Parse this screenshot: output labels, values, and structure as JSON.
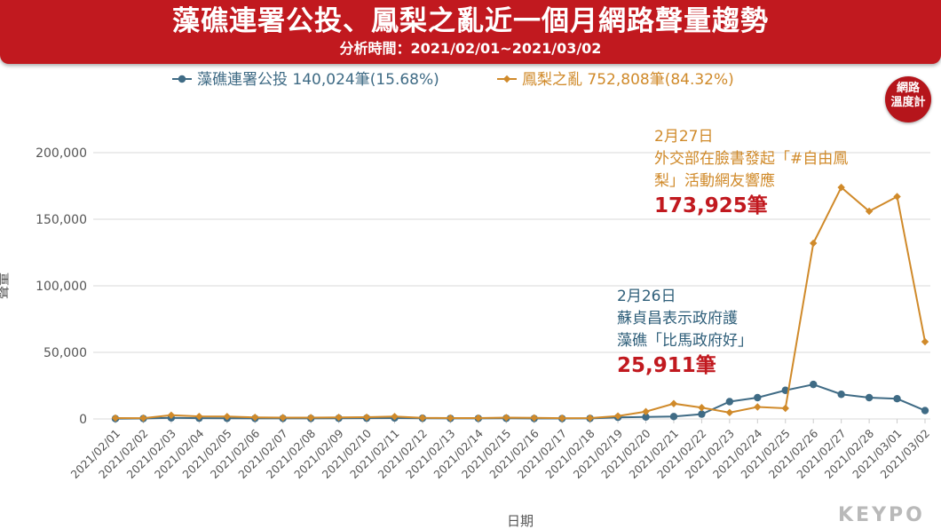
{
  "header": {
    "title": "藻礁連署公投、鳳梨之亂近一個月網路聲量趨勢",
    "subtitle": "分析時間：2021/02/01~2021/03/02"
  },
  "badge": {
    "line1": "網路",
    "line2": "溫度計"
  },
  "brand": "KEYPO",
  "colors": {
    "series_blue": "#3f6b85",
    "series_orange": "#d08a2a",
    "highlight_red": "#c1191f",
    "banner_red": "#c1191f"
  },
  "annotations": {
    "orange": {
      "date": "2月27日",
      "line1": "外交部在臉書發起「#自由鳳",
      "line2": "梨」活動網友響應",
      "value": "173,925筆"
    },
    "blue": {
      "date": "2月26日",
      "line1": "蘇貞昌表示政府護",
      "line2": "藻礁「比馬政府好」",
      "value": "25,911筆"
    }
  },
  "chart_data": {
    "type": "line",
    "xlabel": "日期",
    "ylabel": "聲量",
    "ylim": [
      0,
      200000
    ],
    "yticks": [
      0,
      50000,
      100000,
      150000,
      200000
    ],
    "ytick_labels": [
      "0",
      "50,000",
      "100,000",
      "150,000",
      "200,000"
    ],
    "grid": true,
    "legend_position": "top",
    "categories": [
      "2021/02/01",
      "2021/02/02",
      "2021/02/03",
      "2021/02/04",
      "2021/02/05",
      "2021/02/06",
      "2021/02/07",
      "2021/02/08",
      "2021/02/09",
      "2021/02/10",
      "2021/02/11",
      "2021/02/12",
      "2021/02/13",
      "2021/02/14",
      "2021/02/15",
      "2021/02/16",
      "2021/02/17",
      "2021/02/18",
      "2021/02/19",
      "2021/02/20",
      "2021/02/21",
      "2021/02/22",
      "2021/02/23",
      "2021/02/24",
      "2021/02/25",
      "2021/02/26",
      "2021/02/27",
      "2021/02/28",
      "2021/03/01",
      "2021/03/02"
    ],
    "series": [
      {
        "name": "藻礁連署公投",
        "legend_label": "藻礁連署公投 140,024筆(15.68%)",
        "color": "#3f6b85",
        "values": [
          200,
          300,
          800,
          600,
          500,
          400,
          400,
          400,
          500,
          600,
          700,
          500,
          400,
          400,
          500,
          300,
          300,
          400,
          1200,
          1500,
          1800,
          3600,
          13000,
          16000,
          21500,
          25911,
          18500,
          16000,
          15200,
          6300
        ]
      },
      {
        "name": "鳳梨之亂",
        "legend_label": "鳳梨之亂 752,808筆(84.32%)",
        "color": "#d08a2a",
        "values": [
          700,
          600,
          2800,
          1900,
          1800,
          1200,
          1000,
          1000,
          1200,
          1300,
          1800,
          800,
          700,
          700,
          1000,
          800,
          600,
          700,
          2200,
          5500,
          11500,
          8500,
          4800,
          9000,
          8000,
          132000,
          173925,
          156000,
          167000,
          58000
        ]
      }
    ]
  }
}
